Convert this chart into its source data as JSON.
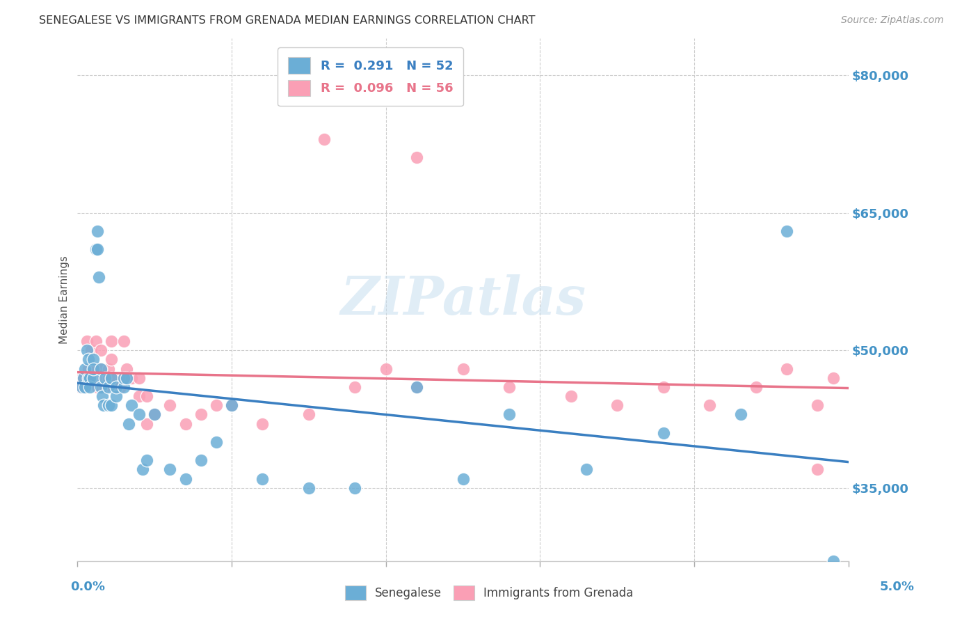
{
  "title": "SENEGALESE VS IMMIGRANTS FROM GRENADA MEDIAN EARNINGS CORRELATION CHART",
  "source": "Source: ZipAtlas.com",
  "ylabel": "Median Earnings",
  "ytick_labels": [
    "$35,000",
    "$50,000",
    "$65,000",
    "$80,000"
  ],
  "ytick_values": [
    35000,
    50000,
    65000,
    80000
  ],
  "xmin": 0.0,
  "xmax": 0.05,
  "ymin": 27000,
  "ymax": 84000,
  "watermark": "ZIPatlas",
  "blue_color": "#6baed6",
  "pink_color": "#fa9fb5",
  "trend_blue": "#3a7fc1",
  "trend_pink": "#e8748a",
  "blue_r": 0.291,
  "blue_n": 52,
  "pink_r": 0.096,
  "pink_n": 56,
  "blue_x": [
    0.0003,
    0.0004,
    0.0005,
    0.0005,
    0.0006,
    0.0007,
    0.0007,
    0.0008,
    0.0008,
    0.001,
    0.001,
    0.001,
    0.0012,
    0.0013,
    0.0013,
    0.0014,
    0.0015,
    0.0015,
    0.0016,
    0.0017,
    0.0018,
    0.002,
    0.002,
    0.0022,
    0.0022,
    0.0025,
    0.0025,
    0.003,
    0.003,
    0.0032,
    0.0033,
    0.0035,
    0.004,
    0.0042,
    0.0045,
    0.005,
    0.006,
    0.007,
    0.008,
    0.009,
    0.01,
    0.012,
    0.015,
    0.018,
    0.022,
    0.025,
    0.028,
    0.033,
    0.038,
    0.043,
    0.046,
    0.049
  ],
  "blue_y": [
    46000,
    47000,
    48000,
    46000,
    50000,
    47000,
    49000,
    47000,
    46000,
    47000,
    49000,
    48000,
    61000,
    63000,
    61000,
    58000,
    46000,
    48000,
    45000,
    44000,
    47000,
    44000,
    46000,
    44000,
    47000,
    45000,
    46000,
    46000,
    47000,
    47000,
    42000,
    44000,
    43000,
    37000,
    38000,
    43000,
    37000,
    36000,
    38000,
    40000,
    44000,
    36000,
    35000,
    35000,
    46000,
    36000,
    43000,
    37000,
    41000,
    43000,
    63000,
    27000
  ],
  "pink_x": [
    0.0002,
    0.0003,
    0.0004,
    0.0005,
    0.0006,
    0.0007,
    0.0008,
    0.0009,
    0.001,
    0.001,
    0.0012,
    0.0012,
    0.0013,
    0.0015,
    0.0015,
    0.0017,
    0.0018,
    0.002,
    0.002,
    0.0022,
    0.0022,
    0.0025,
    0.0025,
    0.0028,
    0.003,
    0.003,
    0.0032,
    0.0035,
    0.004,
    0.004,
    0.0045,
    0.005,
    0.006,
    0.007,
    0.008,
    0.009,
    0.01,
    0.012,
    0.015,
    0.018,
    0.02,
    0.022,
    0.025,
    0.028,
    0.032,
    0.035,
    0.038,
    0.041,
    0.044,
    0.046,
    0.048,
    0.049,
    0.022,
    0.016,
    0.0045,
    0.048
  ],
  "pink_y": [
    46000,
    47000,
    47000,
    46000,
    51000,
    48000,
    47000,
    50000,
    47000,
    48000,
    51000,
    48000,
    46000,
    50000,
    48000,
    47000,
    46000,
    47000,
    48000,
    51000,
    49000,
    47000,
    46000,
    46000,
    47000,
    51000,
    48000,
    47000,
    45000,
    47000,
    45000,
    43000,
    44000,
    42000,
    43000,
    44000,
    44000,
    42000,
    43000,
    46000,
    48000,
    46000,
    48000,
    46000,
    45000,
    44000,
    46000,
    44000,
    46000,
    48000,
    37000,
    47000,
    71000,
    73000,
    42000,
    44000
  ]
}
